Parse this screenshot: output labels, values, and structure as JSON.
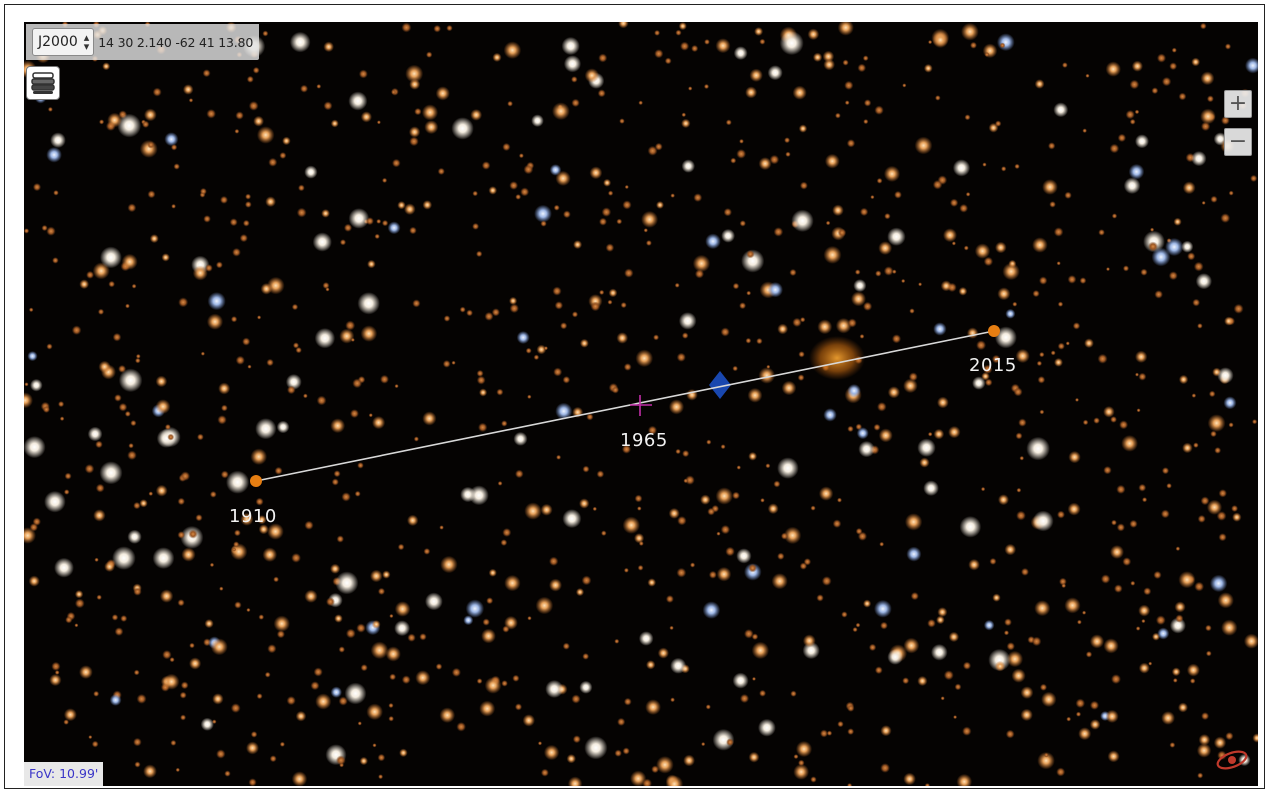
{
  "frame_selector": {
    "value": "J2000"
  },
  "coordinates": {
    "text": "14 30 2.140 -62 41 13.80"
  },
  "layers_button": {
    "icon": "layers-stack-icon"
  },
  "zoom": {
    "in_label": "+",
    "out_label": "−"
  },
  "fov": {
    "text": "FoV: 10.99'"
  },
  "epochs": [
    {
      "year": "1910"
    },
    {
      "year": "1965"
    },
    {
      "year": "2015"
    }
  ],
  "colors": {
    "sky": "#050302",
    "track_line": "#d8d8d8",
    "epoch_point": "#e67e12",
    "reticle": "#c22ea8",
    "fov_text": "#3a35c8",
    "blue_marker": "#1c4fc2"
  }
}
